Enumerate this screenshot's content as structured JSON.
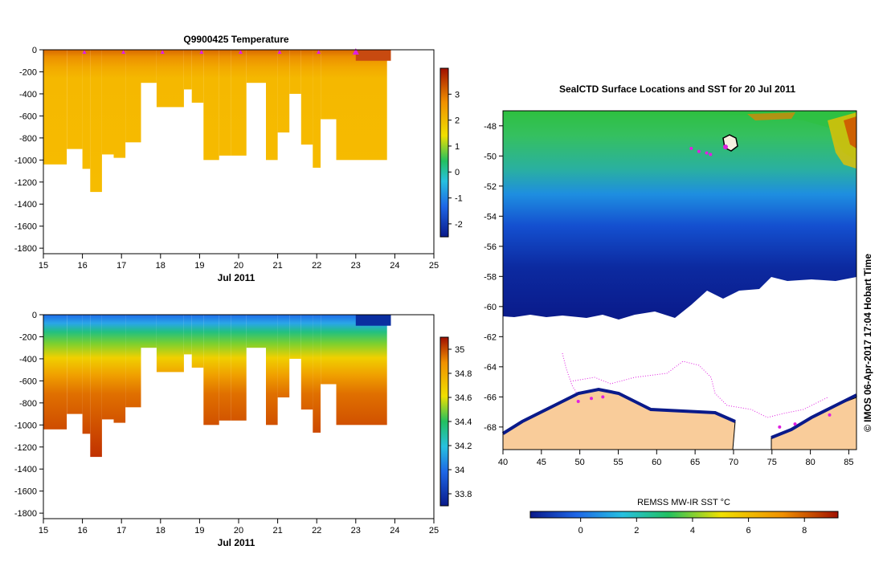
{
  "charts": {
    "temperature": {
      "type": "heatmap",
      "title": "Q9900425  Temperature",
      "x_label": "Jul 2011",
      "x_ticks": [
        "15",
        "16",
        "17",
        "18",
        "19",
        "20",
        "21",
        "22",
        "23",
        "24",
        "25"
      ],
      "y_ticks": [
        "0",
        "-200",
        "-400",
        "-600",
        "-800",
        "-1000",
        "-1200",
        "-1400",
        "-1600",
        "-1800"
      ],
      "colorbar_ticks": [
        "3",
        "2",
        "1",
        "0",
        "-1",
        "-2"
      ],
      "colors": {
        "surface": "#d55e00",
        "upper": "#ee9a00",
        "deep": "#f5b800",
        "cap": "#c84a10"
      }
    },
    "salinity": {
      "type": "heatmap",
      "title": "",
      "x_label": "Jul 2011",
      "x_ticks": [
        "15",
        "16",
        "17",
        "18",
        "19",
        "20",
        "21",
        "22",
        "23",
        "24",
        "25"
      ],
      "y_ticks": [
        "0",
        "-200",
        "-400",
        "-600",
        "-800",
        "-1000",
        "-1200",
        "-1400",
        "-1600",
        "-1800"
      ],
      "colorbar_ticks": [
        "35",
        "34.8",
        "34.6",
        "34.4",
        "34.2",
        "34",
        "33.8"
      ],
      "colors": {
        "top": "#1e6be8",
        "mid": "#2bc090",
        "low": "#f0c000",
        "deep": "#e07000",
        "cap": "#0a2ea0"
      }
    },
    "map": {
      "type": "map",
      "title": "SealCTD Surface Locations and SST for 20 Jul 2011",
      "lon_ticks": [
        "40",
        "45",
        "50",
        "55",
        "60",
        "65",
        "70",
        "75",
        "80",
        "85"
      ],
      "lat_ticks": [
        "-48",
        "-50",
        "-52",
        "-54",
        "-56",
        "-58",
        "-60",
        "-62",
        "-64",
        "-66",
        "-68"
      ],
      "colorbar_title": "REMSS MW-IR SST °C",
      "colorbar_ticks": [
        "0",
        "2",
        "4",
        "6",
        "8"
      ],
      "copyright": "© IMOS 06-Apr-2017 17:04 Hobart Time",
      "colors": {
        "land": "#f9cc9a",
        "track": "#e020e0"
      }
    }
  },
  "chart_data": [
    {
      "type": "heatmap",
      "title": "Q9900425  Temperature",
      "xlabel": "Jul 2011",
      "ylabel": "",
      "xlim": [
        15,
        25
      ],
      "ylim": [
        -1850,
        0
      ],
      "profile_day": [
        15.2,
        15.6,
        16.0,
        16.2,
        16.5,
        16.8,
        17.1,
        17.5,
        17.9,
        18.2,
        18.6,
        18.8,
        19.1,
        19.5,
        19.8,
        20.2,
        20.7,
        21.0,
        21.3,
        21.6,
        21.9,
        22.1,
        22.5,
        23.8
      ],
      "profile_max_depth": [
        -1040,
        -900,
        -1080,
        -1290,
        -950,
        -980,
        -840,
        -300,
        -520,
        -520,
        -360,
        -480,
        -1000,
        -960,
        -960,
        -300,
        -1000,
        -750,
        -400,
        -860,
        -1070,
        -630,
        -1000,
        -100
      ],
      "colorbar_range": [
        -2.5,
        4
      ]
    },
    {
      "type": "heatmap",
      "title": "",
      "xlabel": "Jul 2011",
      "ylabel": "",
      "xlim": [
        15,
        25
      ],
      "ylim": [
        -1850,
        0
      ],
      "profile_day": [
        15.2,
        15.6,
        16.0,
        16.2,
        16.5,
        16.8,
        17.1,
        17.5,
        17.9,
        18.2,
        18.6,
        18.8,
        19.1,
        19.5,
        19.8,
        20.2,
        20.7,
        21.0,
        21.3,
        21.6,
        21.9,
        22.1,
        22.5,
        23.8
      ],
      "profile_max_depth": [
        -1040,
        -900,
        -1080,
        -1290,
        -950,
        -980,
        -840,
        -300,
        -520,
        -520,
        -360,
        -480,
        -1000,
        -960,
        -960,
        -300,
        -1000,
        -750,
        -400,
        -860,
        -1070,
        -630,
        -1000,
        -100
      ],
      "colorbar_range": [
        33.7,
        35.1
      ]
    },
    {
      "type": "heatmap",
      "title": "SealCTD Surface Locations and SST for 20 Jul 2011",
      "xlabel": "",
      "ylabel": "",
      "xlim": [
        40,
        86
      ],
      "ylim": [
        -69.5,
        -47
      ],
      "colorbar_range": [
        -1.8,
        9.2
      ],
      "colorbar_title": "REMSS MW-IR SST °C"
    }
  ]
}
